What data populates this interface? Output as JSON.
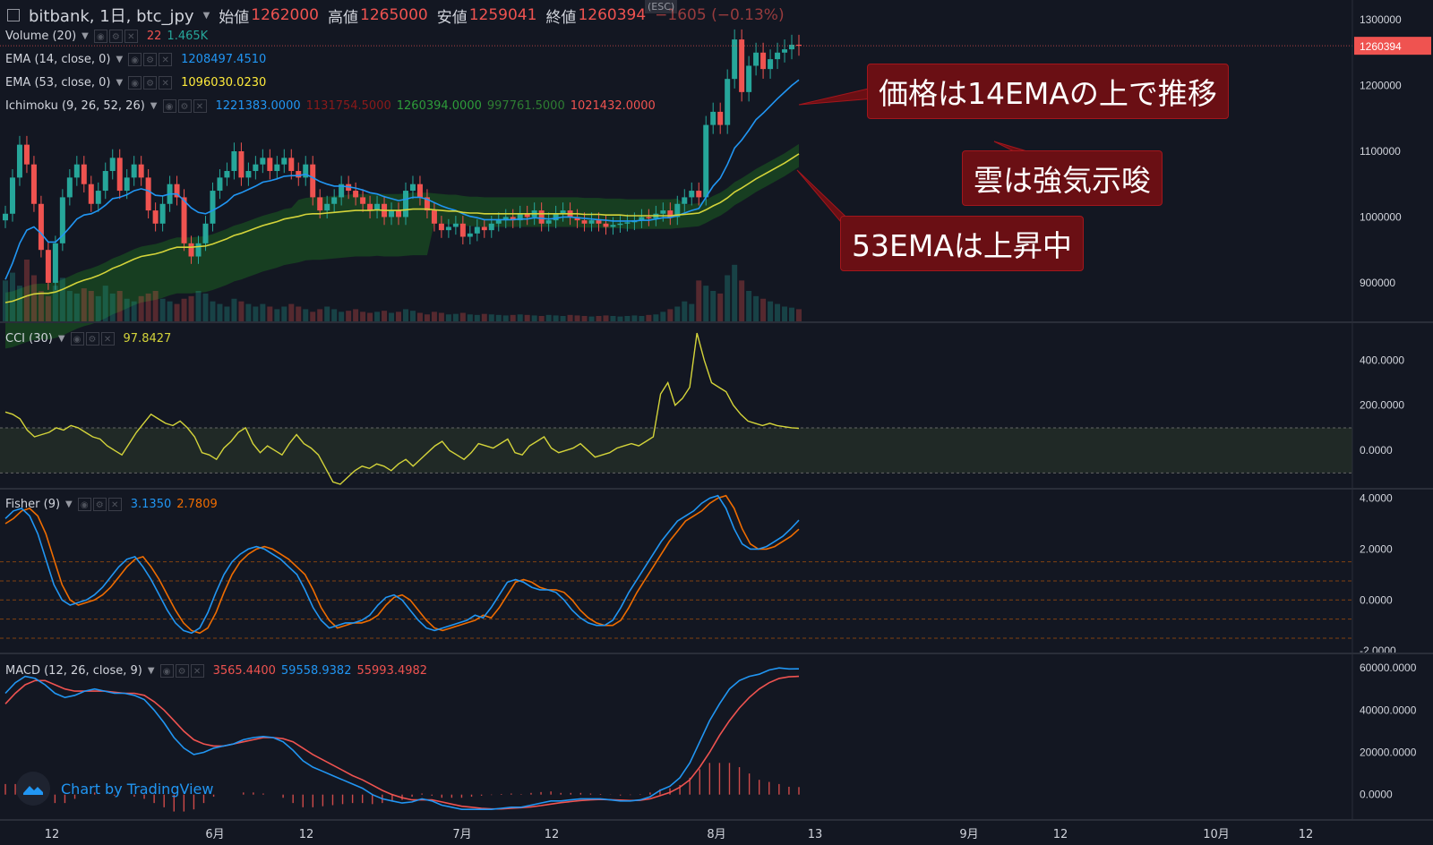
{
  "header": {
    "symbol": "bitbank, 1日, btc_jpy",
    "open_label": "始値",
    "open": "1262000",
    "high_label": "高値",
    "high": "1265000",
    "low_label": "安値",
    "low": "1259041",
    "close_label": "終値",
    "close": "1260394",
    "change": "−1605 (−0.13%)",
    "esc": "(ESC)"
  },
  "indicators": {
    "volume": {
      "label": "Volume (20)",
      "v1": "22",
      "v2": "1.465K"
    },
    "ema14": {
      "label": "EMA (14, close, 0)",
      "value": "1208497.4510"
    },
    "ema53": {
      "label": "EMA (53, close, 0)",
      "value": "1096030.0230"
    },
    "ichimoku": {
      "label": "Ichimoku (9, 26, 52, 26)",
      "v1": "1221383.0000",
      "v2": "1131754.5000",
      "v3": "1260394.0000",
      "v4": "997761.5000",
      "v5": "1021432.0000"
    },
    "cci": {
      "label": "CCI (30)",
      "value": "97.8427"
    },
    "fisher": {
      "label": "Fisher (9)",
      "v1": "3.1350",
      "v2": "2.7809"
    },
    "macd": {
      "label": "MACD (12, 26, close, 9)",
      "v1": "3565.4400",
      "v2": "59558.9382",
      "v3": "55993.4982"
    }
  },
  "annotations": {
    "a1": "価格は14EMAの上で推移",
    "a2": "雲は強気示唆",
    "a3": "53EMAは上昇中"
  },
  "watermark": "Chart by TradingView",
  "icons": {
    "collapse": "collapse-icon",
    "caret": "chevron-down-icon",
    "logo": "tradingview-logo-icon"
  },
  "colors": {
    "up": "#26a69a",
    "down": "#ef5350",
    "ema14": "#2196f3",
    "ema53": "#d4d43a",
    "cloud": "#1b5e20",
    "fisher": "#2196f3",
    "trigger": "#ef6c00",
    "macd": "#2196f3",
    "signal": "#ef5350"
  },
  "chart_data": [
    {
      "type": "candlestick",
      "price_axis_ticks": [
        "1300000",
        "1200000",
        "1100000",
        "1000000",
        "900000"
      ],
      "last_price_label": "1260394",
      "ylim": [
        840000,
        1330000
      ],
      "x_axis_labels": [
        "12",
        "6月",
        "12",
        "7月",
        "12",
        "8月",
        "13",
        "9月",
        "12",
        "10月",
        "12"
      ],
      "closes": [
        1005000,
        1060000,
        1110000,
        1080000,
        1020000,
        950000,
        900000,
        960000,
        1030000,
        1060000,
        1080000,
        1050000,
        1020000,
        1040000,
        1070000,
        1090000,
        1040000,
        1060000,
        1080000,
        1060000,
        1010000,
        990000,
        1020000,
        1050000,
        1030000,
        960000,
        940000,
        960000,
        990000,
        1040000,
        1060000,
        1070000,
        1100000,
        1060000,
        1070000,
        1080000,
        1090000,
        1070000,
        1080000,
        1090000,
        1070000,
        1060000,
        1080000,
        1030000,
        1010000,
        1020000,
        1030000,
        1050000,
        1040000,
        1030000,
        1020000,
        1010000,
        1020000,
        1000000,
        1010000,
        1000000,
        1040000,
        1050000,
        1030000,
        1010000,
        990000,
        980000,
        985000,
        990000,
        970000,
        975000,
        985000,
        980000,
        990000,
        995000,
        1000000,
        995000,
        1005000,
        1000000,
        1010000,
        990000,
        995000,
        1005000,
        1010000,
        1000000,
        995000,
        990000,
        995000,
        990000,
        985000,
        988000,
        990000,
        992000,
        995000,
        1000000,
        998000,
        1005000,
        1010000,
        1000000,
        1020000,
        1030000,
        1040000,
        1030000,
        1140000,
        1160000,
        1140000,
        1210000,
        1270000,
        1190000,
        1230000,
        1250000,
        1225000,
        1240000,
        1250000,
        1255000,
        1262000,
        1260394
      ],
      "volume": [
        80,
        95,
        70,
        120,
        90,
        60,
        50,
        70,
        85,
        60,
        55,
        65,
        60,
        50,
        70,
        55,
        60,
        45,
        40,
        50,
        55,
        60,
        45,
        40,
        35,
        45,
        50,
        60,
        55,
        40,
        35,
        30,
        45,
        40,
        35,
        30,
        35,
        30,
        25,
        30,
        35,
        30,
        25,
        20,
        25,
        30,
        25,
        20,
        22,
        25,
        20,
        18,
        20,
        22,
        18,
        20,
        25,
        22,
        18,
        15,
        20,
        18,
        15,
        16,
        18,
        15,
        14,
        16,
        15,
        14,
        13,
        14,
        15,
        14,
        13,
        12,
        14,
        13,
        12,
        14,
        13,
        12,
        11,
        12,
        13,
        12,
        11,
        12,
        13,
        12,
        14,
        15,
        20,
        25,
        30,
        40,
        35,
        80,
        70,
        60,
        55,
        90,
        110,
        80,
        60,
        50,
        45,
        40,
        35,
        30,
        28,
        25
      ],
      "ema14": [
        905000,
        930000,
        960000,
        980000,
        985000,
        975000,
        962000,
        962000,
        972000,
        984000,
        997000,
        1003000,
        1005000,
        1010000,
        1018000,
        1028000,
        1030000,
        1034000,
        1040000,
        1043000,
        1040000,
        1033000,
        1032000,
        1035000,
        1035000,
        1025000,
        1014000,
        1007000,
        1005000,
        1010000,
        1016000,
        1023000,
        1033000,
        1037000,
        1042000,
        1047000,
        1053000,
        1055000,
        1058000,
        1062000,
        1063000,
        1063000,
        1065000,
        1060000,
        1054000,
        1050000,
        1047000,
        1047000,
        1046000,
        1044000,
        1041000,
        1037000,
        1035000,
        1031000,
        1028000,
        1025000,
        1027000,
        1030000,
        1030000,
        1027000,
        1022000,
        1017000,
        1013000,
        1010000,
        1005000,
        1001000,
        999000,
        996000,
        996000,
        996000,
        996000,
        996000,
        997000,
        997000,
        999000,
        998000,
        997000,
        998000,
        1000000,
        1000000,
        999000,
        998000,
        997000,
        996000,
        995000,
        994000,
        994000,
        994000,
        994000,
        995000,
        995000,
        997000,
        999000,
        999000,
        1002000,
        1006000,
        1010000,
        1013000,
        1030000,
        1047000,
        1059000,
        1080000,
        1105000,
        1117000,
        1132000,
        1148000,
        1158000,
        1169000,
        1180000,
        1190000,
        1200000,
        1208497
      ],
      "ema53": [
        870000,
        872000,
        876000,
        880000,
        883000,
        884000,
        884000,
        886000,
        890000,
        895000,
        900000,
        904000,
        907000,
        911000,
        916000,
        922000,
        926000,
        931000,
        936000,
        940000,
        942000,
        944000,
        947000,
        951000,
        954000,
        954000,
        954000,
        955000,
        956000,
        959000,
        963000,
        967000,
        972000,
        975000,
        979000,
        983000,
        987000,
        990000,
        993000,
        997000,
        999000,
        1001000,
        1004000,
        1005000,
        1005000,
        1006000,
        1007000,
        1008000,
        1009000,
        1010000,
        1010000,
        1010000,
        1011000,
        1010000,
        1010000,
        1010000,
        1011000,
        1012000,
        1012000,
        1012000,
        1011000,
        1010000,
        1009000,
        1009000,
        1007000,
        1006000,
        1006000,
        1005000,
        1005000,
        1005000,
        1005000,
        1005000,
        1005000,
        1005000,
        1005000,
        1005000,
        1005000,
        1005000,
        1005000,
        1005000,
        1005000,
        1004000,
        1004000,
        1004000,
        1003000,
        1003000,
        1003000,
        1002000,
        1002000,
        1002000,
        1002000,
        1002000,
        1002000,
        1002000,
        1003000,
        1004000,
        1005000,
        1006000,
        1011000,
        1017000,
        1022000,
        1029000,
        1038000,
        1044000,
        1051000,
        1058000,
        1064000,
        1070000,
        1076000,
        1082000,
        1089000,
        1096030
      ]
    },
    {
      "type": "line",
      "name": "CCI (30)",
      "axis_ticks": [
        "400.0000",
        "200.0000",
        "0.0000"
      ],
      "ylim": [
        -170,
        560
      ],
      "band": [
        -100,
        100
      ],
      "values": [
        170,
        160,
        140,
        90,
        60,
        70,
        80,
        100,
        90,
        110,
        100,
        80,
        60,
        50,
        20,
        0,
        -20,
        30,
        80,
        120,
        160,
        140,
        120,
        110,
        130,
        100,
        60,
        -10,
        -20,
        -40,
        10,
        40,
        80,
        100,
        30,
        -10,
        20,
        0,
        -20,
        30,
        70,
        30,
        10,
        -20,
        -80,
        -140,
        -150,
        -120,
        -90,
        -70,
        -80,
        -60,
        -70,
        -90,
        -60,
        -40,
        -70,
        -40,
        -10,
        20,
        40,
        0,
        -20,
        -40,
        -10,
        30,
        20,
        10,
        30,
        50,
        -10,
        -20,
        20,
        40,
        60,
        10,
        -10,
        0,
        10,
        30,
        0,
        -30,
        -20,
        -10,
        10,
        20,
        30,
        20,
        40,
        60,
        250,
        300,
        200,
        230,
        280,
        520,
        400,
        300,
        280,
        260,
        200,
        160,
        130,
        120,
        110,
        120,
        110,
        105,
        100,
        97.84
      ]
    },
    {
      "type": "line",
      "name": "Fisher (9)",
      "axis_ticks": [
        "4.0000",
        "2.0000",
        "0.0000",
        "-2.0000"
      ],
      "ylim": [
        -2.1,
        4.3
      ],
      "levels": [
        1.5,
        0.75,
        0,
        -0.75,
        -1.5
      ],
      "series": [
        {
          "name": "Fisher",
          "values": [
            3.2,
            3.5,
            3.6,
            3.3,
            2.6,
            1.6,
            0.6,
            0.0,
            -0.2,
            -0.1,
            0.0,
            0.2,
            0.5,
            0.9,
            1.3,
            1.6,
            1.7,
            1.3,
            0.8,
            0.2,
            -0.4,
            -0.9,
            -1.2,
            -1.3,
            -1.1,
            -0.5,
            0.3,
            1.0,
            1.5,
            1.8,
            2.0,
            2.1,
            2.0,
            1.8,
            1.6,
            1.3,
            1.0,
            0.4,
            -0.3,
            -0.8,
            -1.1,
            -1.0,
            -0.9,
            -0.9,
            -0.8,
            -0.6,
            -0.2,
            0.1,
            0.2,
            0.0,
            -0.4,
            -0.8,
            -1.1,
            -1.2,
            -1.1,
            -1.0,
            -0.9,
            -0.8,
            -0.6,
            -0.7,
            -0.3,
            0.2,
            0.7,
            0.8,
            0.7,
            0.5,
            0.4,
            0.4,
            0.3,
            0.0,
            -0.4,
            -0.7,
            -0.9,
            -1.0,
            -1.0,
            -0.8,
            -0.3,
            0.3,
            0.8,
            1.3,
            1.8,
            2.3,
            2.7,
            3.1,
            3.3,
            3.5,
            3.8,
            4.0,
            4.1,
            3.6,
            2.8,
            2.2,
            2.0,
            2.0,
            2.1,
            2.3,
            2.5,
            2.8,
            3.135
          ]
        },
        {
          "name": "Trigger",
          "values": [
            3.0,
            3.2,
            3.5,
            3.6,
            3.3,
            2.6,
            1.6,
            0.6,
            0.0,
            -0.2,
            -0.1,
            0.0,
            0.2,
            0.5,
            0.9,
            1.3,
            1.6,
            1.7,
            1.3,
            0.8,
            0.2,
            -0.4,
            -0.9,
            -1.2,
            -1.3,
            -1.1,
            -0.5,
            0.3,
            1.0,
            1.5,
            1.8,
            2.0,
            2.1,
            2.0,
            1.8,
            1.6,
            1.3,
            1.0,
            0.4,
            -0.3,
            -0.8,
            -1.1,
            -1.0,
            -0.9,
            -0.9,
            -0.8,
            -0.6,
            -0.2,
            0.1,
            0.2,
            0.0,
            -0.4,
            -0.8,
            -1.1,
            -1.2,
            -1.1,
            -1.0,
            -0.9,
            -0.8,
            -0.6,
            -0.7,
            -0.3,
            0.2,
            0.7,
            0.8,
            0.7,
            0.5,
            0.4,
            0.4,
            0.3,
            0.0,
            -0.4,
            -0.7,
            -0.9,
            -1.0,
            -1.0,
            -0.8,
            -0.3,
            0.3,
            0.8,
            1.3,
            1.8,
            2.3,
            2.7,
            3.1,
            3.3,
            3.5,
            3.8,
            4.0,
            4.1,
            3.6,
            2.8,
            2.2,
            2.0,
            2.0,
            2.1,
            2.3,
            2.5,
            2.78
          ]
        }
      ]
    },
    {
      "type": "line",
      "name": "MACD (12, 26, close, 9)",
      "axis_ticks": [
        "60000.0000",
        "40000.0000",
        "20000.0000",
        "0.0000"
      ],
      "ylim": [
        -12000,
        66000
      ],
      "series": [
        {
          "name": "MACD",
          "values": [
            48000,
            53000,
            56000,
            55000,
            52000,
            48000,
            46000,
            47000,
            49000,
            50000,
            49000,
            48000,
            48000,
            47000,
            45000,
            40000,
            34000,
            27000,
            22000,
            19000,
            20000,
            22000,
            23000,
            24000,
            26000,
            27000,
            27500,
            27000,
            25000,
            21000,
            16000,
            13000,
            11000,
            9000,
            7000,
            5000,
            3000,
            0,
            -2000,
            -3000,
            -4000,
            -3500,
            -2000,
            -3000,
            -5000,
            -6000,
            -7000,
            -7000,
            -7000,
            -7000,
            -6500,
            -6000,
            -6000,
            -5000,
            -4000,
            -3000,
            -3000,
            -2500,
            -2000,
            -2000,
            -2000,
            -2500,
            -3000,
            -3000,
            -2500,
            -1000,
            2000,
            4000,
            8000,
            15000,
            25000,
            35000,
            43000,
            50000,
            54000,
            56000,
            57000,
            59000,
            60000,
            59500,
            59558.9
          ]
        },
        {
          "name": "Signal",
          "values": [
            43000,
            48000,
            52000,
            54000,
            54000,
            52000,
            50000,
            49000,
            49000,
            49000,
            49000,
            48500,
            48000,
            48000,
            47000,
            44000,
            40000,
            35000,
            30000,
            26000,
            24000,
            23000,
            23000,
            24000,
            25000,
            26000,
            27000,
            27000,
            26500,
            25000,
            22000,
            19000,
            16500,
            14000,
            11500,
            9000,
            7000,
            4500,
            2000,
            0,
            -1500,
            -2500,
            -2500,
            -2500,
            -3500,
            -4500,
            -5500,
            -6000,
            -6500,
            -6800,
            -6800,
            -6500,
            -6200,
            -5800,
            -5200,
            -4500,
            -3800,
            -3300,
            -2800,
            -2500,
            -2300,
            -2400,
            -2600,
            -2800,
            -2700,
            -2000,
            -500,
            1000,
            3500,
            7000,
            13000,
            20000,
            28000,
            35000,
            41000,
            46000,
            50000,
            53000,
            55000,
            55800,
            55993.5
          ]
        },
        {
          "name": "Histogram",
          "values": [
            5000,
            5000,
            4000,
            1000,
            -2000,
            -4000,
            -4000,
            -2000,
            0,
            1000,
            0,
            -500,
            0,
            -1000,
            -2000,
            -4000,
            -6000,
            -8000,
            -8000,
            -7000,
            -4000,
            -1000,
            0,
            0,
            1000,
            1000,
            500,
            0,
            -1500,
            -4000,
            -6000,
            -6000,
            -5500,
            -5000,
            -4500,
            -4000,
            -4000,
            -4500,
            -4000,
            -3000,
            -2500,
            -1000,
            500,
            -500,
            -1500,
            -1500,
            -1500,
            -1000,
            -500,
            -200,
            300,
            500,
            200,
            800,
            1200,
            1500,
            800,
            800,
            800,
            500,
            300,
            -100,
            -400,
            -200,
            200,
            1000,
            2500,
            3000,
            4500,
            8000,
            12000,
            15000,
            15000,
            15000,
            13000,
            10000,
            7000,
            6000,
            5000,
            3700,
            3565
          ]
        }
      ]
    }
  ]
}
